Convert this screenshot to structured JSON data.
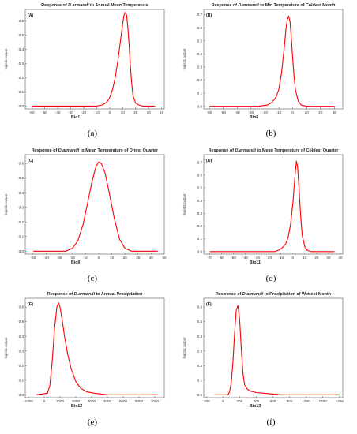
{
  "chart_data": [
    {
      "type": "line",
      "panel_label": "(A)",
      "sub_label": "(a)",
      "title_pre": "Response of ",
      "title_species": "D.armandi",
      "title_post": " to Annual Mean Temperature",
      "xlabel": "Bio1",
      "ylabel": "logistic output",
      "xlim": [
        -65,
        42
      ],
      "ylim": [
        -0.02,
        0.68
      ],
      "xticks": [
        -60,
        -50,
        -40,
        -30,
        -20,
        -10,
        0,
        10,
        20,
        30,
        40
      ],
      "yticks": [
        0.0,
        0.1,
        0.2,
        0.3,
        0.4,
        0.5,
        0.6
      ],
      "series": [
        {
          "color": "#ff0000",
          "x": [
            -60,
            -10,
            -5,
            -2,
            0,
            2,
            4,
            6,
            8,
            10,
            11,
            12,
            13,
            14,
            15,
            16,
            17,
            18,
            20,
            22,
            25,
            35
          ],
          "y": [
            0.0,
            0.0,
            0.01,
            0.03,
            0.06,
            0.11,
            0.19,
            0.3,
            0.44,
            0.58,
            0.64,
            0.66,
            0.64,
            0.55,
            0.42,
            0.27,
            0.15,
            0.07,
            0.02,
            0.01,
            0.0,
            0.0
          ]
        }
      ]
    },
    {
      "type": "line",
      "panel_label": "(B)",
      "sub_label": "(b)",
      "title_pre": "Response of ",
      "title_species": "D.armandi",
      "title_post": "  to Min Temperature of Coldest Month",
      "xlabel": "Bio6",
      "ylabel": "logistic output",
      "xlim": [
        -64,
        36
      ],
      "ylim": [
        -0.02,
        0.74
      ],
      "xticks": [
        -60,
        -50,
        -40,
        -30,
        -20,
        -10,
        0,
        10,
        20,
        30
      ],
      "yticks": [
        0.0,
        0.1,
        0.2,
        0.3,
        0.4,
        0.5,
        0.6,
        0.7
      ],
      "series": [
        {
          "color": "#ff0000",
          "x": [
            -60,
            -25,
            -18,
            -15,
            -12,
            -10,
            -8,
            -6,
            -5,
            -4,
            -3,
            -2,
            -1,
            0,
            1,
            2,
            4,
            6,
            10,
            30
          ],
          "y": [
            0.0,
            0.0,
            0.01,
            0.03,
            0.07,
            0.13,
            0.26,
            0.46,
            0.58,
            0.66,
            0.69,
            0.65,
            0.52,
            0.36,
            0.22,
            0.12,
            0.04,
            0.01,
            0.0,
            0.0
          ]
        }
      ]
    },
    {
      "type": "line",
      "panel_label": "(C)",
      "sub_label": "(c)",
      "title_pre": "Response of ",
      "title_species": "D.armandi",
      "title_post": " to Mean Temperature of Driest Quarter",
      "xlabel": "Bio9",
      "ylabel": "logistic output",
      "xlim": [
        -56,
        50
      ],
      "ylim": [
        -0.02,
        0.66
      ],
      "xticks": [
        -50,
        -40,
        -30,
        -20,
        -10,
        0,
        10,
        20,
        30,
        40,
        50
      ],
      "yticks": [
        0.0,
        0.1,
        0.2,
        0.3,
        0.4,
        0.5,
        0.6
      ],
      "series": [
        {
          "color": "#ff0000",
          "x": [
            -50,
            -25,
            -20,
            -16,
            -12,
            -8,
            -5,
            -2,
            0,
            2,
            5,
            8,
            12,
            16,
            20,
            25,
            45
          ],
          "y": [
            0.0,
            0.0,
            0.02,
            0.07,
            0.18,
            0.35,
            0.48,
            0.58,
            0.61,
            0.6,
            0.53,
            0.4,
            0.22,
            0.08,
            0.02,
            0.0,
            0.0
          ]
        }
      ]
    },
    {
      "type": "line",
      "panel_label": "(D)",
      "sub_label": "(d)",
      "title_pre": "Response of ",
      "title_species": "D.armandi",
      "title_post": " to Mean Temperature of Coldest Quarter",
      "xlabel": "Bio11",
      "ylabel": "logistic output",
      "xlim": [
        -75,
        42
      ],
      "ylim": [
        -0.02,
        0.76
      ],
      "xticks": [
        -70,
        -60,
        -50,
        -40,
        -30,
        -20,
        -10,
        0,
        10,
        20,
        30,
        40
      ],
      "yticks": [
        0.0,
        0.1,
        0.2,
        0.3,
        0.4,
        0.5,
        0.6,
        0.7
      ],
      "series": [
        {
          "color": "#ff0000",
          "x": [
            -70,
            -15,
            -10,
            -6,
            -4,
            -2,
            0,
            1,
            2,
            3,
            4,
            5,
            6,
            7,
            8,
            10,
            12,
            15,
            35
          ],
          "y": [
            0.0,
            0.0,
            0.02,
            0.06,
            0.11,
            0.21,
            0.38,
            0.5,
            0.62,
            0.71,
            0.66,
            0.52,
            0.36,
            0.22,
            0.12,
            0.04,
            0.01,
            0.0,
            0.0
          ]
        }
      ]
    },
    {
      "type": "line",
      "panel_label": "(E)",
      "sub_label": "(e)",
      "title_pre": "Response of ",
      "title_species": "D.armandi",
      "title_post": " to Annual Precipitation",
      "xlabel": "Bio12",
      "ylabel": "logistic output",
      "xlim": [
        -1200,
        7600
      ],
      "ylim": [
        -0.02,
        0.66
      ],
      "xticks": [
        -1000,
        0,
        1000,
        2000,
        3000,
        4000,
        5000,
        6000,
        7000
      ],
      "yticks": [
        0.0,
        0.1,
        0.2,
        0.3,
        0.4,
        0.5,
        0.6
      ],
      "series": [
        {
          "color": "#ff0000",
          "x": [
            -500,
            200,
            350,
            500,
            650,
            800,
            900,
            1000,
            1150,
            1300,
            1500,
            1700,
            2000,
            2300,
            2700,
            3200,
            4000,
            7200
          ],
          "y": [
            0.0,
            0.01,
            0.06,
            0.22,
            0.45,
            0.6,
            0.63,
            0.6,
            0.5,
            0.39,
            0.27,
            0.18,
            0.09,
            0.045,
            0.02,
            0.01,
            0.0,
            0.0
          ]
        }
      ]
    },
    {
      "type": "line",
      "panel_label": "(F)",
      "sub_label": "(f)",
      "title_pre": "Response of ",
      "title_species": "D.armandi",
      "title_post": " to Precipitation of Wettest Month",
      "xlabel": "Bio13",
      "ylabel": "logistic output",
      "xlim": [
        -230,
        1440
      ],
      "ylim": [
        -0.02,
        0.66
      ],
      "xticks": [
        -200,
        0,
        200,
        400,
        600,
        800,
        1000,
        1200,
        1400
      ],
      "yticks": [
        0.0,
        0.1,
        0.2,
        0.3,
        0.4,
        0.5,
        0.6
      ],
      "series": [
        {
          "color": "#ff0000",
          "x": [
            -100,
            60,
            80,
            100,
            120,
            140,
            160,
            180,
            200,
            220,
            240,
            260,
            290,
            330,
            400,
            500,
            700,
            1000,
            1400
          ],
          "y": [
            0.0,
            0.0,
            0.02,
            0.08,
            0.22,
            0.42,
            0.58,
            0.61,
            0.52,
            0.32,
            0.15,
            0.07,
            0.04,
            0.025,
            0.015,
            0.01,
            0.0,
            0.0,
            0.0
          ]
        }
      ]
    }
  ]
}
